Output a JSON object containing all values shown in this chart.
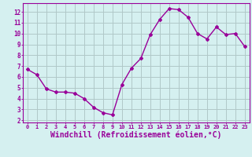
{
  "x": [
    0,
    1,
    2,
    3,
    4,
    5,
    6,
    7,
    8,
    9,
    10,
    11,
    12,
    13,
    14,
    15,
    16,
    17,
    18,
    19,
    20,
    21,
    22,
    23
  ],
  "y": [
    6.7,
    6.2,
    4.9,
    4.6,
    4.6,
    4.5,
    4.0,
    3.2,
    2.7,
    2.5,
    5.3,
    6.8,
    7.7,
    9.9,
    11.3,
    12.3,
    12.2,
    11.5,
    10.0,
    9.5,
    10.6,
    9.9,
    10.0,
    8.8
  ],
  "line_color": "#990099",
  "marker": "D",
  "markersize": 2.0,
  "linewidth": 1.0,
  "xlabel": "Windchill (Refroidissement éolien,°C)",
  "xlabel_fontsize": 7,
  "ylabel_ticks": [
    2,
    3,
    4,
    5,
    6,
    7,
    8,
    9,
    10,
    11,
    12
  ],
  "xlim": [
    -0.5,
    23.5
  ],
  "ylim": [
    1.8,
    12.8
  ],
  "xtick_labels": [
    "0",
    "1",
    "2",
    "3",
    "4",
    "5",
    "6",
    "7",
    "8",
    "9",
    "10",
    "11",
    "12",
    "13",
    "14",
    "15",
    "16",
    "17",
    "18",
    "19",
    "20",
    "21",
    "22",
    "23"
  ],
  "bg_color": "#d5f0f0",
  "grid_color": "#b0c8c8",
  "tick_color": "#990099",
  "label_color": "#990099",
  "spine_color": "#990099"
}
